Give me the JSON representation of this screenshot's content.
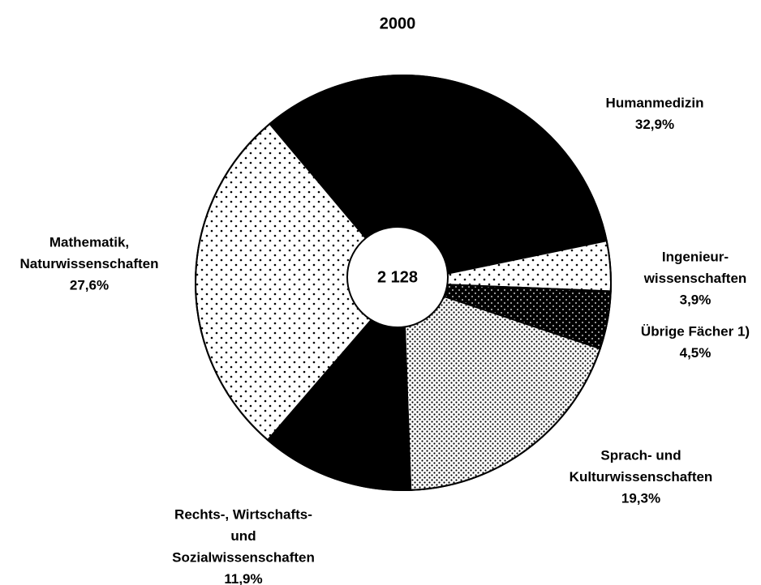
{
  "chart_data": {
    "type": "pie",
    "title": "2000",
    "center_label": "2 128",
    "categories": [
      [
        "Humanmedizin"
      ],
      [
        "Ingenieur-",
        "wissenschaften"
      ],
      [
        "Übrige Fächer 1)"
      ],
      [
        "Sprach- und",
        "Kulturwissenschaften"
      ],
      [
        "Rechts-, Wirtschafts-",
        "und",
        "Sozialwissenschaften"
      ],
      [
        "Mathematik,",
        "Naturwissenschaften"
      ]
    ],
    "values": [
      32.9,
      3.9,
      4.5,
      19.3,
      11.9,
      27.6
    ],
    "value_labels": [
      "32,9%",
      "3,9%",
      "4,5%",
      "19,3%",
      "11,9%",
      "27,6%"
    ],
    "patterns": [
      "solid",
      "dots",
      "dark-dots",
      "dense-dots",
      "solid",
      "dots"
    ]
  }
}
